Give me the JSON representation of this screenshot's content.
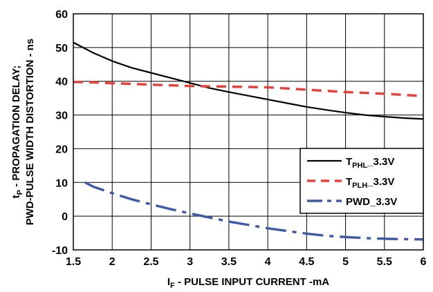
{
  "chart_data": {
    "type": "line",
    "title": "",
    "xlabel_main": "I",
    "xlabel_sub": "F",
    "xlabel_rest": " - PULSE INPUT CURRENT -mA",
    "ylabel_line1_main": "t",
    "ylabel_line1_sub": "P",
    "ylabel_line1_rest": " - PROPAGATION DELAY;",
    "ylabel_line2": "PWD-PULSE WIDTH DISTORTION - ns",
    "xlim": [
      1.5,
      6
    ],
    "ylim": [
      -10,
      60
    ],
    "xticks": [
      "1.5",
      "2",
      "2.5",
      "3",
      "3.5",
      "4",
      "4.5",
      "5",
      "5.5",
      "6"
    ],
    "yticks": [
      "60",
      "50",
      "40",
      "30",
      "20",
      "10",
      "0",
      "-10"
    ],
    "grid": true,
    "legend_position": "bottom-right",
    "series": [
      {
        "name": "T",
        "name_sub": "PHL",
        "name_rest": "_3.3V",
        "color": "#000000",
        "style": "solid",
        "x": [
          1.5,
          1.75,
          2.0,
          2.25,
          2.5,
          2.75,
          3.0,
          3.25,
          3.5,
          3.75,
          4.0,
          4.25,
          4.5,
          4.75,
          5.0,
          5.25,
          5.5,
          5.75,
          6.0
        ],
        "y": [
          51.5,
          48.5,
          46.0,
          44.0,
          42.5,
          41.0,
          39.5,
          38.0,
          36.8,
          35.7,
          34.6,
          33.5,
          32.4,
          31.5,
          30.7,
          30.0,
          29.5,
          29.1,
          28.8
        ]
      },
      {
        "name": "T",
        "name_sub": "PLH",
        "name_rest": "_3.3V",
        "color": "#e8413c",
        "style": "dashed",
        "x": [
          1.5,
          1.75,
          2.0,
          2.5,
          3.0,
          3.5,
          4.0,
          4.5,
          5.0,
          5.5,
          6.0
        ],
        "y": [
          39.8,
          39.7,
          39.4,
          39.0,
          38.6,
          38.4,
          38.2,
          37.5,
          36.8,
          36.3,
          35.6
        ]
      },
      {
        "name": "PWD",
        "name_sub": "",
        "name_rest": "_3.3V",
        "color": "#3f5ba8",
        "style": "dashdot",
        "x": [
          1.65,
          1.75,
          2.0,
          2.25,
          2.5,
          2.75,
          3.0,
          3.25,
          3.5,
          3.75,
          4.0,
          4.25,
          4.5,
          4.75,
          5.0,
          5.25,
          5.5,
          5.75,
          6.0
        ],
        "y": [
          10.0,
          8.8,
          6.8,
          5.0,
          3.5,
          2.1,
          0.8,
          -0.4,
          -1.6,
          -2.6,
          -3.6,
          -4.4,
          -5.2,
          -5.8,
          -6.2,
          -6.5,
          -6.7,
          -6.8,
          -6.9
        ]
      }
    ]
  }
}
